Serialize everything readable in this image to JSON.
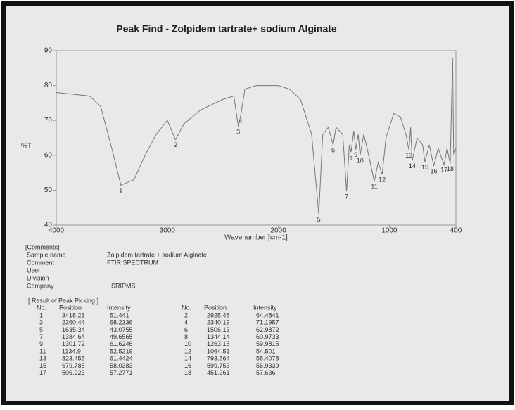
{
  "chart_data": {
    "type": "line",
    "title": "Peak Find - Zolpidem tartrate+ sodium Alginate",
    "x_label": "Wavenumber [cm-1]",
    "y_label": "%T",
    "color": "#777777",
    "x": [
      4000,
      3850,
      3700,
      3600,
      3500,
      3418.21,
      3300,
      3200,
      3100,
      3000,
      2925.48,
      2850,
      2700,
      2500,
      2400,
      2360.44,
      2340.19,
      2300,
      2200,
      2000,
      1900,
      1800,
      1700,
      1635.34,
      1600,
      1550,
      1506.13,
      1480,
      1420,
      1384.64,
      1360,
      1344.14,
      1320,
      1301.72,
      1280,
      1263.15,
      1230,
      1200,
      1134.9,
      1100,
      1064.51,
      1030,
      960,
      900,
      850,
      823.455,
      808,
      793.564,
      750,
      700,
      679.785,
      640,
      599.753,
      560,
      506.223,
      480,
      451.261,
      430,
      420,
      400
    ],
    "values": [
      78,
      77.5,
      77,
      74,
      62,
      51.441,
      53,
      60,
      66,
      70,
      64.4841,
      69,
      73,
      76,
      77,
      68.2136,
      71.1957,
      79,
      80,
      80,
      79,
      76,
      66,
      43.0755,
      66,
      68,
      62.9872,
      68,
      66,
      49.6565,
      63,
      60.9733,
      67,
      61.6246,
      66,
      59.9815,
      66,
      62,
      52.5219,
      58,
      54.501,
      65,
      72,
      71,
      66,
      61.4424,
      68,
      58.4078,
      65,
      63,
      58.0383,
      63,
      56.9339,
      62,
      57.2771,
      62,
      57.636,
      88,
      60,
      62
    ],
    "xlim": [
      4000,
      400
    ],
    "ylim": [
      40,
      90
    ],
    "xticks": [
      4000,
      3000,
      2000,
      1000,
      400
    ],
    "yticks": [
      40,
      50,
      60,
      70,
      80,
      90
    ]
  },
  "comments": {
    "heading": "[Comments]",
    "fields": [
      {
        "label": "Sample name",
        "value": "Zolpidem tartrate + sodium Alginate"
      },
      {
        "label": "Comment",
        "value": "FTIR SPECTRUM"
      },
      {
        "label": "User"
      },
      {
        "label": "Division"
      },
      {
        "label": "Company",
        "value": "SRIPMS"
      }
    ]
  },
  "peak_table": {
    "title": "[ Result of Peak Picking ]",
    "headers": [
      "No.",
      "Position",
      "Intensity",
      "No.",
      "Position",
      "Intensity"
    ],
    "rows": [
      [
        1,
        3418.21,
        51.441,
        2,
        2925.48,
        64.4841
      ],
      [
        3,
        2360.44,
        68.2136,
        4,
        2340.19,
        71.1957
      ],
      [
        5,
        1635.34,
        43.0755,
        6,
        1506.13,
        62.9872
      ],
      [
        7,
        1384.64,
        49.6565,
        8,
        1344.14,
        60.9733
      ],
      [
        9,
        1301.72,
        61.6246,
        10,
        1263.15,
        59.9815
      ],
      [
        11,
        1134.9,
        52.5219,
        12,
        1064.51,
        54.501
      ],
      [
        13,
        823.455,
        61.4424,
        14,
        793.564,
        58.4078
      ],
      [
        15,
        679.785,
        58.0383,
        16,
        599.753,
        56.9339
      ],
      [
        17,
        506.223,
        57.2771,
        18,
        451.261,
        57.636
      ]
    ]
  }
}
